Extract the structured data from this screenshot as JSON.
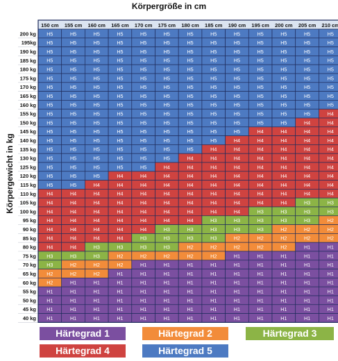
{
  "chart_data": {
    "type": "heatmap",
    "title": "Körpergröße in cm",
    "ylabel": "Körpergewicht in kg",
    "x": [
      "150 cm",
      "155 cm",
      "160 cm",
      "165 cm",
      "170 cm",
      "175 cm",
      "180 cm",
      "185 cm",
      "190 cm",
      "195 cm",
      "200 cm",
      "205 cm",
      "210 cm"
    ],
    "y": [
      "200 kg",
      "195kg",
      "190 kg",
      "185 kg",
      "180 kg",
      "175 kg",
      "170 kg",
      "165 kg",
      "160 kg",
      "155 kg",
      "150 kg",
      "145 kg",
      "140 kg",
      "135 kg",
      "130 kg",
      "125 kg",
      "120 kg",
      "115 kg",
      "110 kg",
      "105 kg",
      "100 kg",
      "95 kg",
      "90 kg",
      "85 kg",
      "80 kg",
      "75 kg",
      "70 kg",
      "65 kg",
      "60 kg",
      "55 kg",
      "50 kg",
      "45 kg",
      "40 kg"
    ],
    "values": [
      [
        "H5",
        "H5",
        "H5",
        "H5",
        "H5",
        "H5",
        "H5",
        "H5",
        "H5",
        "H5",
        "H5",
        "H5",
        "H5"
      ],
      [
        "H5",
        "H5",
        "H5",
        "H5",
        "H5",
        "H5",
        "H5",
        "H5",
        "H5",
        "H5",
        "H5",
        "H5",
        "H5"
      ],
      [
        "H5",
        "H5",
        "H5",
        "H5",
        "H5",
        "H5",
        "H5",
        "H5",
        "H5",
        "H5",
        "H5",
        "H5",
        "H5"
      ],
      [
        "H5",
        "H5",
        "H5",
        "H5",
        "H5",
        "H5",
        "H5",
        "H5",
        "H5",
        "H5",
        "H5",
        "H5",
        "H5"
      ],
      [
        "H5",
        "H5",
        "H5",
        "H5",
        "H5",
        "H5",
        "H5",
        "H5",
        "H5",
        "H5",
        "H5",
        "H5",
        "H5"
      ],
      [
        "H5",
        "H5",
        "H5",
        "H5",
        "H5",
        "H5",
        "H5",
        "H5",
        "H5",
        "H5",
        "H5",
        "H5",
        "H5"
      ],
      [
        "H5",
        "H5",
        "H5",
        "H5",
        "H5",
        "H5",
        "H5",
        "H5",
        "H5",
        "H5",
        "H5",
        "H5",
        "H5"
      ],
      [
        "H5",
        "H5",
        "H5",
        "H5",
        "H5",
        "H5",
        "H5",
        "H5",
        "H5",
        "H5",
        "H5",
        "H5",
        "H5"
      ],
      [
        "H5",
        "H5",
        "H5",
        "H5",
        "H5",
        "H5",
        "H5",
        "H5",
        "H5",
        "H5",
        "H5",
        "H5",
        "H5"
      ],
      [
        "H5",
        "H5",
        "H5",
        "H5",
        "H5",
        "H5",
        "H5",
        "H5",
        "H5",
        "H5",
        "H5",
        "H5",
        "H4"
      ],
      [
        "H5",
        "H5",
        "H5",
        "H5",
        "H5",
        "H5",
        "H5",
        "H5",
        "H5",
        "H5",
        "H5",
        "H4",
        "H4"
      ],
      [
        "H5",
        "H5",
        "H5",
        "H5",
        "H5",
        "H5",
        "H5",
        "H5",
        "H5",
        "H4",
        "H4",
        "H4",
        "H4"
      ],
      [
        "H5",
        "H5",
        "H5",
        "H5",
        "H5",
        "H5",
        "H5",
        "H5",
        "H4",
        "H4",
        "H4",
        "H4",
        "H4"
      ],
      [
        "H5",
        "H5",
        "H5",
        "H5",
        "H5",
        "H5",
        "H5",
        "H4",
        "H4",
        "H4",
        "H4",
        "H4",
        "H4"
      ],
      [
        "H5",
        "H5",
        "H5",
        "H5",
        "H5",
        "H5",
        "H4",
        "H4",
        "H4",
        "H4",
        "H4",
        "H4",
        "H4"
      ],
      [
        "H5",
        "H5",
        "H5",
        "H5",
        "H5",
        "H4",
        "H4",
        "H4",
        "H4",
        "H4",
        "H4",
        "H4",
        "H4"
      ],
      [
        "H5",
        "H5",
        "H5",
        "H4",
        "H4",
        "H4",
        "H4",
        "H4",
        "H4",
        "H4",
        "H4",
        "H4",
        "H4"
      ],
      [
        "H5",
        "H5",
        "H4",
        "H4",
        "H4",
        "H4",
        "H4",
        "H4",
        "H4",
        "H4",
        "H4",
        "H4",
        "H4"
      ],
      [
        "H4",
        "H4",
        "H4",
        "H4",
        "H4",
        "H4",
        "H4",
        "H4",
        "H4",
        "H4",
        "H4",
        "H4",
        "H4"
      ],
      [
        "H4",
        "H4",
        "H4",
        "H4",
        "H4",
        "H4",
        "H4",
        "H4",
        "H4",
        "H4",
        "H4",
        "H3",
        "H3"
      ],
      [
        "H4",
        "H4",
        "H4",
        "H4",
        "H4",
        "H4",
        "H4",
        "H4",
        "H4",
        "H3",
        "H3",
        "H3",
        "H3"
      ],
      [
        "H4",
        "H4",
        "H4",
        "H4",
        "H4",
        "H4",
        "H4",
        "H3",
        "H3",
        "H3",
        "H3",
        "H3",
        "H2"
      ],
      [
        "H4",
        "H4",
        "H4",
        "H4",
        "H4",
        "H3",
        "H3",
        "H3",
        "H3",
        "H3",
        "H2",
        "H2",
        "H2"
      ],
      [
        "H4",
        "H4",
        "H4",
        "H4",
        "H3",
        "H3",
        "H3",
        "H3",
        "H2",
        "H2",
        "H2",
        "H2",
        "H2"
      ],
      [
        "H4",
        "H4",
        "H3",
        "H3",
        "H3",
        "H3",
        "H2",
        "H2",
        "H2",
        "H2",
        "H2",
        "H1",
        "H1"
      ],
      [
        "H3",
        "H3",
        "H3",
        "H2",
        "H2",
        "H2",
        "H2",
        "H2",
        "H1",
        "H1",
        "H1",
        "H1",
        "H1"
      ],
      [
        "H3",
        "H2",
        "H2",
        "H2",
        "H1",
        "H1",
        "H1",
        "H1",
        "H1",
        "H1",
        "H1",
        "H1",
        "H1"
      ],
      [
        "H2",
        "H2",
        "H2",
        "H1",
        "H1",
        "H1",
        "H1",
        "H1",
        "H1",
        "H1",
        "H1",
        "H1",
        "H1"
      ],
      [
        "H2",
        "H1",
        "H1",
        "H1",
        "H1",
        "H1",
        "H1",
        "H1",
        "H1",
        "H1",
        "H1",
        "H1",
        "H1"
      ],
      [
        "H1",
        "H1",
        "H1",
        "H1",
        "H1",
        "H1",
        "H1",
        "H1",
        "H1",
        "H1",
        "H1",
        "H1",
        "H1"
      ],
      [
        "H1",
        "H1",
        "H1",
        "H1",
        "H1",
        "H1",
        "H1",
        "H1",
        "H1",
        "H1",
        "H1",
        "H1",
        "H1"
      ],
      [
        "H1",
        "H1",
        "H1",
        "H1",
        "H1",
        "H1",
        "H1",
        "H1",
        "H1",
        "H1",
        "H1",
        "H1",
        "H1"
      ],
      [
        "H1",
        "H1",
        "H1",
        "H1",
        "H1",
        "H1",
        "H1",
        "H1",
        "H1",
        "H1",
        "H1",
        "H1",
        "H1"
      ]
    ],
    "colors": {
      "H1": "#7b4fa0",
      "H2": "#f28c3a",
      "H3": "#8cb446",
      "H4": "#cf4340",
      "H5": "#4d7ac2",
      "header": "#dbe4f1",
      "grid": "#1f2c5c"
    },
    "legend": [
      {
        "key": "H1",
        "label": "Härtegrad 1"
      },
      {
        "key": "H2",
        "label": "Härtegrad 2"
      },
      {
        "key": "H3",
        "label": "Härtegrad 3"
      },
      {
        "key": "H4",
        "label": "Härtegrad 4"
      },
      {
        "key": "H5",
        "label": "Härtegrad 5"
      }
    ]
  }
}
